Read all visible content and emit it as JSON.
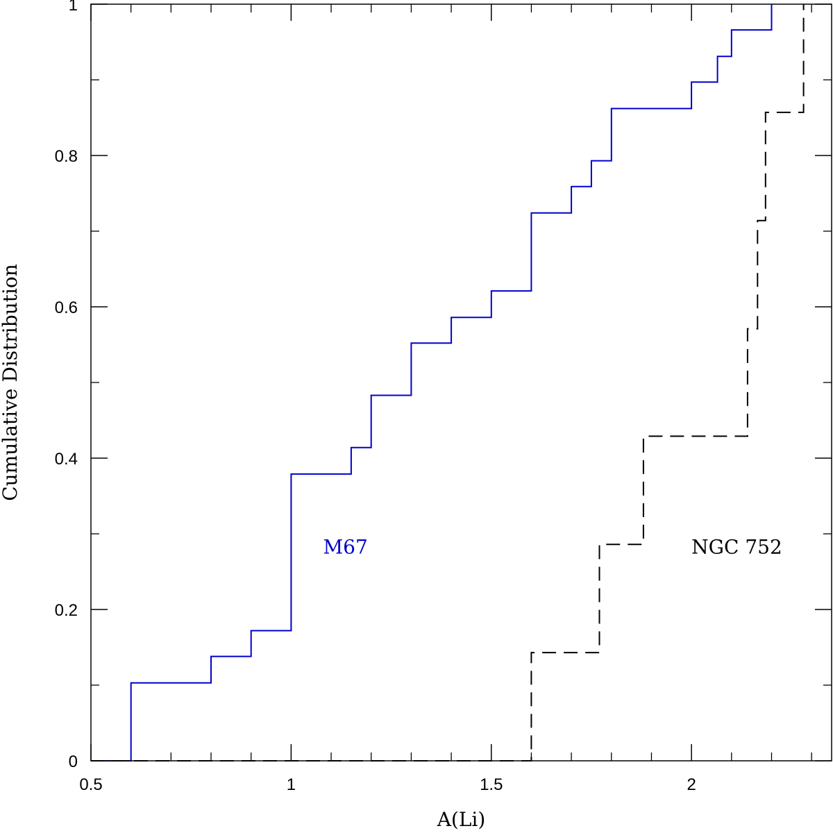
{
  "chart_data": {
    "type": "line",
    "title": "",
    "xlabel": "A(Li)",
    "ylabel": "Cumulative Distribution",
    "xlim": [
      0.5,
      2.35
    ],
    "ylim": [
      0,
      1
    ],
    "x_ticks": [
      0.5,
      1,
      1.5,
      2
    ],
    "x_tick_labels": [
      "0.5",
      "1",
      "1.5",
      "2"
    ],
    "x_minor_step": 0.1,
    "y_ticks": [
      0,
      0.2,
      0.4,
      0.6,
      0.8,
      1
    ],
    "y_tick_labels": [
      "0",
      "0.2",
      "0.4",
      "0.6",
      "0.8",
      "1"
    ],
    "y_minor_step": 0.1,
    "grid": false,
    "series": [
      {
        "name": "M67",
        "color": "#0000cc",
        "line_style": "solid",
        "step": true,
        "label_at": [
          1.08,
          0.283
        ],
        "points": [
          [
            0.5,
            0
          ],
          [
            0.6,
            0
          ],
          [
            0.6,
            0.103
          ],
          [
            0.8,
            0.103
          ],
          [
            0.8,
            0.138
          ],
          [
            0.9,
            0.138
          ],
          [
            0.9,
            0.172
          ],
          [
            1.0,
            0.172
          ],
          [
            1.0,
            0.379
          ],
          [
            1.15,
            0.379
          ],
          [
            1.15,
            0.414
          ],
          [
            1.2,
            0.414
          ],
          [
            1.2,
            0.483
          ],
          [
            1.3,
            0.483
          ],
          [
            1.3,
            0.552
          ],
          [
            1.4,
            0.552
          ],
          [
            1.4,
            0.586
          ],
          [
            1.5,
            0.586
          ],
          [
            1.5,
            0.621
          ],
          [
            1.6,
            0.621
          ],
          [
            1.6,
            0.724
          ],
          [
            1.7,
            0.724
          ],
          [
            1.7,
            0.759
          ],
          [
            1.75,
            0.759
          ],
          [
            1.75,
            0.793
          ],
          [
            1.8,
            0.793
          ],
          [
            1.8,
            0.862
          ],
          [
            2.0,
            0.862
          ],
          [
            2.0,
            0.897
          ],
          [
            2.065,
            0.897
          ],
          [
            2.065,
            0.931
          ],
          [
            2.1,
            0.931
          ],
          [
            2.1,
            0.966
          ],
          [
            2.2,
            0.966
          ],
          [
            2.2,
            1.0
          ]
        ]
      },
      {
        "name": "NGC 752",
        "color": "#000000",
        "line_style": "dashed",
        "step": true,
        "label_at": [
          2.0,
          0.283
        ],
        "points": [
          [
            0.5,
            0
          ],
          [
            1.6,
            0
          ],
          [
            1.6,
            0.143
          ],
          [
            1.77,
            0.143
          ],
          [
            1.77,
            0.286
          ],
          [
            1.88,
            0.286
          ],
          [
            1.88,
            0.429
          ],
          [
            2.14,
            0.429
          ],
          [
            2.14,
            0.571
          ],
          [
            2.165,
            0.571
          ],
          [
            2.165,
            0.714
          ],
          [
            2.185,
            0.714
          ],
          [
            2.185,
            0.857
          ],
          [
            2.28,
            0.857
          ],
          [
            2.28,
            1.0
          ]
        ]
      }
    ]
  }
}
